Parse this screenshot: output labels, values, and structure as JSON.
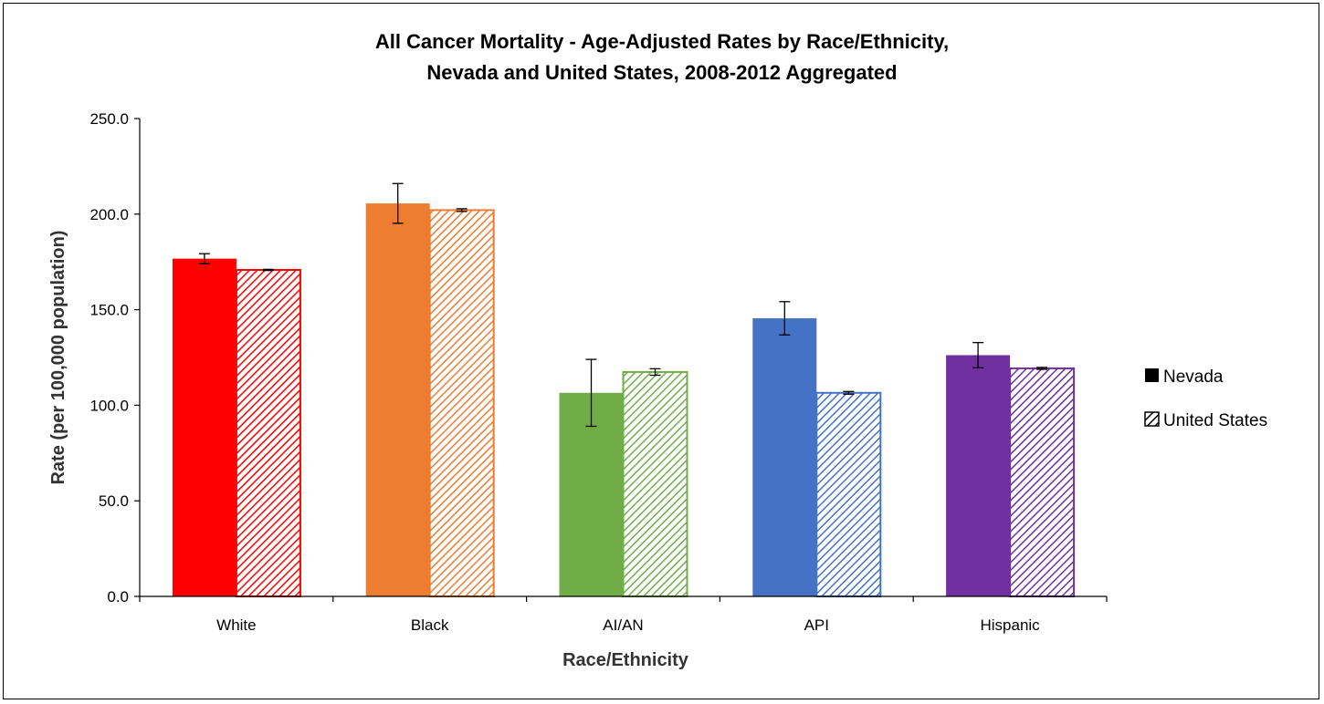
{
  "chart_data": {
    "type": "bar",
    "title_lines": [
      "All Cancer Mortality - Age-Adjusted Rates by Race/Ethnicity,",
      "Nevada and United States, 2008-2012 Aggregated"
    ],
    "xlabel": "Race/Ethnicity",
    "ylabel": "Rate (per 100,000 population)",
    "ylim": [
      0,
      250
    ],
    "yticks": [
      0,
      50,
      100,
      150,
      200,
      250
    ],
    "ytick_labels": [
      "0.0",
      "50.0",
      "100.0",
      "150.0",
      "200.0",
      "250.0"
    ],
    "categories": [
      "White",
      "Black",
      "AI/AN",
      "API",
      "Hispanic"
    ],
    "category_colors": [
      "#ff0000",
      "#ed7d31",
      "#70ad47",
      "#4472c4",
      "#7030a0"
    ],
    "series": [
      {
        "name": "Nevada",
        "pattern": "solid",
        "values": [
          176.7,
          205.6,
          106.5,
          145.5,
          126.2
        ],
        "error_low": [
          174.1,
          195.2,
          89.0,
          136.8,
          119.6
        ],
        "error_high": [
          179.3,
          216.0,
          124.0,
          154.2,
          132.8
        ]
      },
      {
        "name": "United States",
        "pattern": "hatched",
        "values": [
          170.8,
          202.1,
          117.4,
          106.5,
          119.3
        ],
        "error_low": [
          170.5,
          201.4,
          115.7,
          105.8,
          118.8
        ],
        "error_high": [
          171.1,
          202.8,
          119.1,
          107.2,
          119.8
        ]
      }
    ],
    "legend_position": "right",
    "grid": false
  }
}
